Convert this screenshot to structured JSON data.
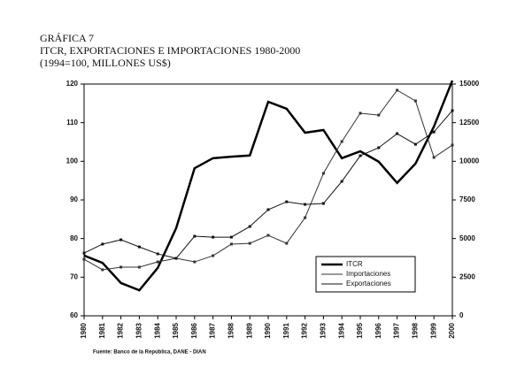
{
  "chart_data": {
    "type": "line",
    "title": "GRÁFICA 7",
    "subtitle": "ITCR, EXPORTACIONES E IMPORTACIONES 1980-2000",
    "subtitle2": "(1994=100, MILLONES US$)",
    "source": "Fuente: Banco de la República, DANE - DIAN",
    "categories": [
      "1980",
      "1981",
      "1982",
      "1983",
      "1984",
      "1985",
      "1986",
      "1987",
      "1988",
      "1989",
      "1990",
      "1991",
      "1992",
      "1993",
      "1994",
      "1995",
      "1996",
      "1997",
      "1998",
      "1999",
      "2000"
    ],
    "ylim": [
      60,
      120
    ],
    "yticks": [
      60,
      70,
      80,
      90,
      100,
      110,
      120
    ],
    "y2lim": [
      0,
      15000
    ],
    "y2ticks": [
      0,
      2500,
      5000,
      7500,
      10000,
      12500,
      15000
    ],
    "legend": "lower right",
    "series": [
      {
        "name": "ITCR",
        "color": "#000000",
        "width": 2.5,
        "values": [
          75.6,
          73.7,
          68.5,
          66.6,
          72.4,
          82.7,
          98.2,
          100.8,
          101.2,
          101.5,
          115.4,
          113.6,
          107.4,
          108.1,
          100.8,
          102.6,
          99.9,
          94.4,
          99.4,
          109,
          120.9
        ]
      },
      {
        "name": "Importaciones",
        "color": "#333333",
        "width": 1,
        "axis": "y2",
        "values": [
          3660,
          2980,
          3150,
          3150,
          3490,
          3720,
          3490,
          3890,
          4640,
          4690,
          5210,
          4690,
          6350,
          9220,
          11280,
          13110,
          12990,
          14600,
          13910,
          10250,
          11050
        ]
      },
      {
        "name": "Exportaciones",
        "color": "#111111",
        "width": 1,
        "axis": "y2",
        "values": [
          4060,
          4640,
          4920,
          4460,
          4010,
          3720,
          5150,
          5090,
          5090,
          5780,
          6870,
          7380,
          7210,
          7270,
          8700,
          10360,
          10880,
          11790,
          11100,
          11900,
          13280
        ]
      }
    ]
  }
}
